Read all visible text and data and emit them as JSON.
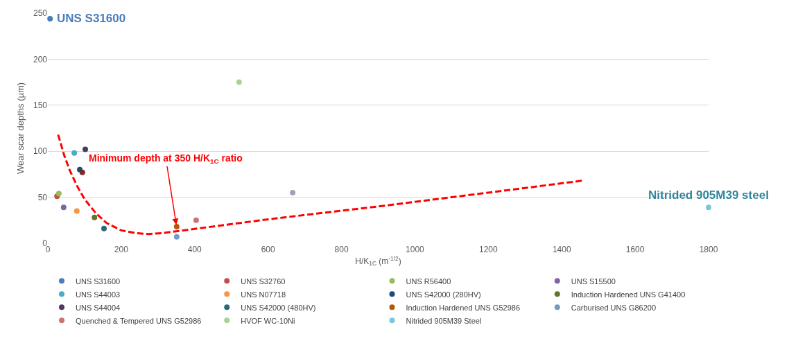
{
  "chart_data": {
    "type": "scatter",
    "xlabel": "H/K$_{1C}$ (m$^{-1/2}$)",
    "ylabel": "Wear scar depths (µm)",
    "xlim": [
      0,
      1800
    ],
    "xticks": [
      0,
      200,
      400,
      600,
      800,
      1000,
      1200,
      1400,
      1600,
      1800
    ],
    "ylim": [
      0,
      250
    ],
    "yticks": [
      0,
      50,
      100,
      150,
      200,
      250
    ],
    "grid": "y",
    "legend": "bottom",
    "marker": "circle",
    "series": [
      {
        "name": "UNS S31600",
        "color": "#4a7ebb",
        "x": [
          6
        ],
        "values": [
          244
        ]
      },
      {
        "name": "UNS S32760",
        "color": "#c0504d",
        "x": [
          25
        ],
        "values": [
          51
        ]
      },
      {
        "name": "UNS R56400",
        "color": "#9bbb59",
        "x": [
          30
        ],
        "values": [
          54
        ]
      },
      {
        "name": "UNS S15500",
        "color": "#8064a2",
        "x": [
          43
        ],
        "values": [
          39
        ]
      },
      {
        "name": "UNS S44003",
        "color": "#4bacc6",
        "x": [
          72
        ],
        "values": [
          98
        ]
      },
      {
        "name": "UNS N07718",
        "color": "#f79646",
        "x": [
          79
        ],
        "values": [
          35
        ]
      },
      {
        "name": "UNS S42000 (280HV)",
        "color": "#1f497d",
        "x": [
          87
        ],
        "values": [
          80
        ]
      },
      {
        "color": "#772c2a",
        "x": [
          94
        ],
        "values": [
          77
        ]
      },
      {
        "name": "Induction Hardened UNS G41400",
        "color": "#5f7530",
        "x": [
          127
        ],
        "values": [
          28
        ]
      },
      {
        "name": "UNS S44004",
        "color": "#4d3b62",
        "x": [
          102
        ],
        "values": [
          102
        ]
      },
      {
        "name": "UNS S42000 (480HV)",
        "color": "#276a7c",
        "x": [
          153
        ],
        "values": [
          16
        ]
      },
      {
        "name": "Induction Hardened UNS G52986",
        "color": "#b65708",
        "x": [
          351
        ],
        "values": [
          18
        ]
      },
      {
        "name": "Carburised UNS G86200",
        "color": "#729aca",
        "x": [
          351
        ],
        "values": [
          7
        ]
      },
      {
        "name": "Quenched & Tempered UNS G52986",
        "color": "#cd7371",
        "x": [
          404
        ],
        "values": [
          25
        ]
      },
      {
        "name": "HVOF WC-10Ni",
        "color": "#afd095",
        "x": [
          521
        ],
        "values": [
          175
        ]
      },
      {
        "color": "#a99bbd",
        "x": [
          667
        ],
        "values": [
          55
        ]
      },
      {
        "name": "Nitrided 905M39 Steel",
        "color": "#7ac6da",
        "x": [
          1800
        ],
        "values": [
          39
        ]
      },
      {
        "type": "line",
        "color": "#ff0000",
        "line_style": "dashed",
        "marker": "none",
        "x": [
          28,
          45,
          60,
          80,
          100,
          130,
          160,
          200,
          240,
          275,
          310,
          350,
          600,
          900,
          1200,
          1456
        ],
        "values": [
          118,
          95,
          79,
          62,
          48,
          33,
          22,
          14,
          11,
          10,
          11,
          13,
          26,
          40,
          55,
          68
        ]
      }
    ],
    "annotations": [
      {
        "text": "UNS S31600",
        "x": 6,
        "y": 244
      },
      {
        "text": "Nitrided 905M39 steel",
        "x": 1800,
        "y": 39
      },
      {
        "text": "Minimum depth at 350 H/K$_{1C}$ ratio",
        "x": 350,
        "y": 20
      }
    ]
  }
}
